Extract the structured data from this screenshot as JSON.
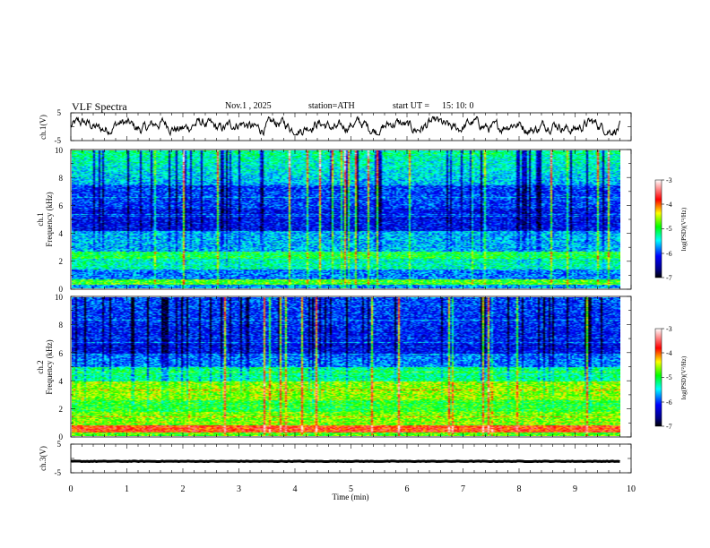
{
  "header": {
    "title": "VLF  Spectra",
    "date": "Nov.1  , 2025",
    "station": "station=ATH",
    "start_label": "start  UT  =",
    "start_time": "15: 10: 0"
  },
  "colorbar": {
    "label": "log(PSD)(V²/Hz)",
    "ticks": [
      "-3",
      "-4",
      "-5",
      "-6",
      "-7"
    ],
    "range": [
      -7,
      -3
    ]
  },
  "chart_data": [
    {
      "type": "line",
      "name": "ch1-waveform",
      "ylabel": "ch.1(V)",
      "ylim": [
        -5,
        5
      ],
      "yticks": [
        "5",
        "-5"
      ],
      "xlim": [
        0,
        10
      ],
      "note": "noisy waveform, approx -2..3 V"
    },
    {
      "type": "heatmap",
      "name": "ch1-spectrogram",
      "ylabel_top": "ch.1",
      "ylabel": "Frequency  (kHz)",
      "ylim": [
        0,
        10
      ],
      "yticks": [
        "0",
        "2",
        "4",
        "6",
        "8",
        "10"
      ],
      "xlim": [
        0,
        9.8
      ]
    },
    {
      "type": "heatmap",
      "name": "ch2-spectrogram",
      "ylabel_top": "ch.2",
      "ylabel": "Frequency  (kHz)",
      "ylim": [
        0,
        10
      ],
      "yticks": [
        "0",
        "2",
        "4",
        "6",
        "8",
        "10"
      ],
      "xlim": [
        0,
        9.8
      ]
    },
    {
      "type": "line",
      "name": "ch3-waveform",
      "ylabel": "ch.3(V)",
      "ylim": [
        -5,
        5
      ],
      "yticks": [
        "5",
        "-5"
      ],
      "xlim": [
        0,
        10
      ],
      "note": "flat line near -1 V"
    }
  ],
  "xaxis": {
    "label": "Time  (min)",
    "ticks": [
      "0",
      "1",
      "2",
      "3",
      "4",
      "5",
      "6",
      "7",
      "8",
      "9",
      "10"
    ],
    "range": [
      0,
      10
    ]
  }
}
